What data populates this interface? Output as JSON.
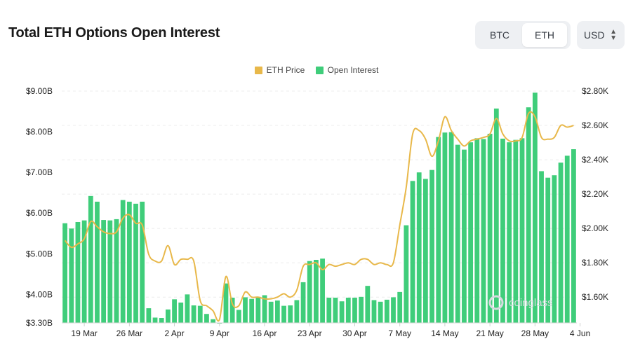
{
  "header": {
    "title": "Total ETH Options Open Interest",
    "tab_btc": "BTC",
    "tab_eth": "ETH",
    "currency": "USD"
  },
  "watermark": "coinglass",
  "colors": {
    "price": "#e8b84a",
    "oi": "#3fcd7a",
    "grid": "#ececec"
  },
  "chart_data": {
    "type": "bar",
    "title": "Total ETH Options Open Interest",
    "legend": [
      {
        "name": "ETH Price",
        "color": "#e8b84a"
      },
      {
        "name": "Open Interest",
        "color": "#3fcd7a"
      }
    ],
    "left_axis": {
      "ylim": [
        3.3,
        9.0
      ],
      "ticks": [
        3.3,
        4,
        5,
        6,
        7,
        8,
        9
      ],
      "labels": [
        "$3.30B",
        "$4.00B",
        "$5.00B",
        "$6.00B",
        "$7.00B",
        "$8.00B",
        "$9.00B"
      ]
    },
    "right_axis": {
      "ylim": [
        1.45,
        2.8
      ],
      "ticks": [
        1.6,
        1.8,
        2.0,
        2.2,
        2.4,
        2.6,
        2.8
      ],
      "labels": [
        "$1.60K",
        "$1.80K",
        "$2.00K",
        "$2.20K",
        "$2.40K",
        "$2.60K",
        "$2.80K"
      ]
    },
    "x_ticks": [
      {
        "label": "19 Mar",
        "index": 3
      },
      {
        "label": "26 Mar",
        "index": 10
      },
      {
        "label": "2 Apr",
        "index": 17
      },
      {
        "label": "9 Apr",
        "index": 24
      },
      {
        "label": "16 Apr",
        "index": 31
      },
      {
        "label": "23 Apr",
        "index": 38
      },
      {
        "label": "30 Apr",
        "index": 45
      },
      {
        "label": "7 May",
        "index": 52
      },
      {
        "label": "14 May",
        "index": 59
      },
      {
        "label": "21 May",
        "index": 66
      },
      {
        "label": "28 May",
        "index": 73
      },
      {
        "label": "4 Jun",
        "index": 80
      }
    ],
    "series": [
      {
        "name": "Open Interest",
        "unit": "B USD",
        "values": [
          5.75,
          5.62,
          5.78,
          5.82,
          6.42,
          6.28,
          5.83,
          5.82,
          5.85,
          6.32,
          6.28,
          6.23,
          6.28,
          3.66,
          3.43,
          3.42,
          3.63,
          3.88,
          3.8,
          4.0,
          3.73,
          3.72,
          3.52,
          3.39,
          3.3,
          4.27,
          3.92,
          3.62,
          3.93,
          3.89,
          3.94,
          3.98,
          3.82,
          3.85,
          3.72,
          3.73,
          3.86,
          4.3,
          4.82,
          4.85,
          4.88,
          3.92,
          3.92,
          3.83,
          3.92,
          3.92,
          3.94,
          4.21,
          3.86,
          3.82,
          3.87,
          3.93,
          4.06,
          5.7,
          6.79,
          7.0,
          6.84,
          7.06,
          7.87,
          7.98,
          7.99,
          7.68,
          7.56,
          7.74,
          7.84,
          7.82,
          7.95,
          8.57,
          7.83,
          7.74,
          7.8,
          7.84,
          8.6,
          8.96,
          7.03,
          6.87,
          6.93,
          7.24,
          7.41,
          7.57
        ]
      },
      {
        "name": "ETH Price",
        "unit": "K USD",
        "values": [
          1.93,
          1.89,
          1.91,
          1.94,
          2.04,
          2.01,
          1.98,
          1.97,
          1.98,
          2.06,
          2.08,
          2.03,
          2.02,
          1.85,
          1.81,
          1.81,
          1.9,
          1.79,
          1.82,
          1.82,
          1.81,
          1.58,
          1.55,
          1.52,
          1.47,
          1.72,
          1.56,
          1.55,
          1.63,
          1.6,
          1.6,
          1.59,
          1.59,
          1.6,
          1.62,
          1.6,
          1.64,
          1.78,
          1.79,
          1.8,
          1.76,
          1.79,
          1.78,
          1.79,
          1.8,
          1.79,
          1.82,
          1.82,
          1.79,
          1.8,
          1.79,
          1.8,
          2.02,
          2.24,
          2.55,
          2.57,
          2.52,
          2.42,
          2.51,
          2.65,
          2.57,
          2.52,
          2.48,
          2.51,
          2.52,
          2.53,
          2.55,
          2.64,
          2.55,
          2.51,
          2.51,
          2.53,
          2.67,
          2.65,
          2.53,
          2.52,
          2.53,
          2.6,
          2.59,
          2.6
        ]
      }
    ]
  }
}
